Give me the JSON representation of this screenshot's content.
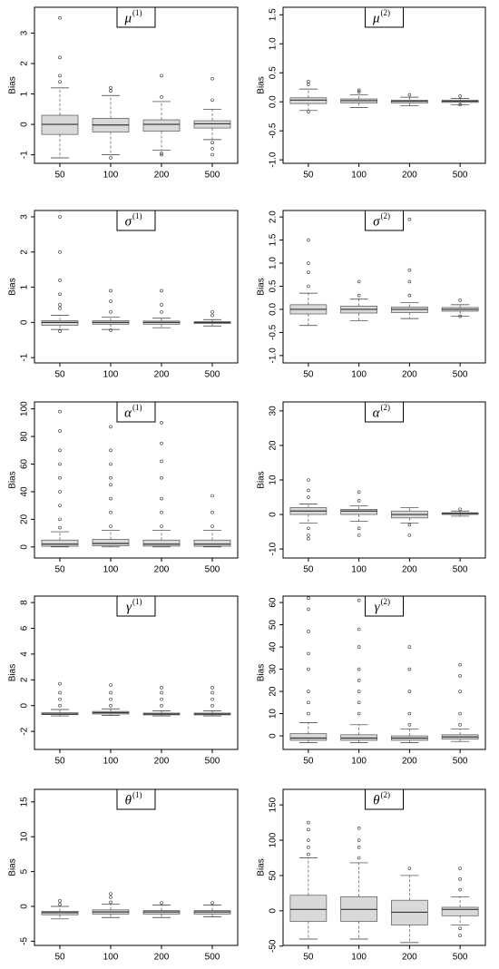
{
  "chart_data": [
    {
      "type": "box",
      "title": "μ",
      "title_sup": "(1)",
      "ylabel": "Bias",
      "categories": [
        "50",
        "100",
        "200",
        "500"
      ],
      "ylim": [
        -1.28,
        3.85
      ],
      "yticks": [
        -1,
        0,
        1,
        2,
        3
      ],
      "boxes": [
        {
          "whisker_low": -1.1,
          "q1": -0.33,
          "median": 0,
          "q3": 0.3,
          "whisker_high": 1.2,
          "outliers": [
            1.4,
            1.6,
            2.2,
            3.5
          ]
        },
        {
          "whisker_low": -1.0,
          "q1": -0.25,
          "median": -0.02,
          "q3": 0.2,
          "whisker_high": 0.95,
          "outliers": [
            1.1,
            1.2,
            -1.1
          ]
        },
        {
          "whisker_low": -0.85,
          "q1": -0.22,
          "median": 0,
          "q3": 0.15,
          "whisker_high": 0.75,
          "outliers": [
            0.9,
            1.6,
            -0.95,
            -1.0
          ]
        },
        {
          "whisker_low": -0.5,
          "q1": -0.12,
          "median": 0.02,
          "q3": 0.12,
          "whisker_high": 0.5,
          "outliers": [
            0.8,
            1.5,
            -0.6,
            -0.8,
            -1.0
          ]
        }
      ]
    },
    {
      "type": "box",
      "title": "μ",
      "title_sup": "(2)",
      "ylabel": "Bias",
      "categories": [
        "50",
        "100",
        "200",
        "500"
      ],
      "ylim": [
        -1.06,
        1.63
      ],
      "yticks": [
        {
          "value": -1,
          "label": "-1.0"
        },
        {
          "value": -0.5,
          "label": "-0.5"
        },
        {
          "value": 0,
          "label": "0.0"
        },
        {
          "value": 0.5,
          "label": "0.5"
        },
        {
          "value": 1,
          "label": "1.0"
        },
        {
          "value": 1.5,
          "label": "1.5"
        }
      ],
      "boxes": [
        {
          "whisker_low": -0.15,
          "q1": -0.03,
          "median": 0.03,
          "q3": 0.07,
          "whisker_high": 0.22,
          "outliers": [
            0.3,
            0.35,
            -0.17
          ]
        },
        {
          "whisker_low": -0.1,
          "q1": -0.02,
          "median": 0.02,
          "q3": 0.05,
          "whisker_high": 0.12,
          "outliers": [
            0.17,
            0.2
          ]
        },
        {
          "whisker_low": -0.07,
          "q1": -0.02,
          "median": 0.01,
          "q3": 0.03,
          "whisker_high": 0.08,
          "outliers": [
            0.12
          ]
        },
        {
          "whisker_low": -0.05,
          "q1": -0.01,
          "median": 0.01,
          "q3": 0.03,
          "whisker_high": 0.06,
          "outliers": [
            0.1,
            -0.05
          ]
        }
      ]
    },
    {
      "type": "box",
      "title": "σ",
      "title_sup": "(1)",
      "ylabel": "Bias",
      "categories": [
        "50",
        "100",
        "200",
        "500"
      ],
      "ylim": [
        -1.15,
        3.18
      ],
      "yticks": [
        -1,
        0,
        1,
        2,
        3
      ],
      "boxes": [
        {
          "whisker_low": -0.2,
          "q1": -0.08,
          "median": 0,
          "q3": 0.05,
          "whisker_high": 0.2,
          "outliers": [
            0.4,
            0.5,
            0.8,
            1.2,
            2.0,
            3.0,
            -0.25
          ]
        },
        {
          "whisker_low": -0.2,
          "q1": -0.05,
          "median": 0,
          "q3": 0.05,
          "whisker_high": 0.15,
          "outliers": [
            0.3,
            0.6,
            0.9,
            -0.22
          ]
        },
        {
          "whisker_low": -0.15,
          "q1": -0.05,
          "median": 0,
          "q3": 0.04,
          "whisker_high": 0.12,
          "outliers": [
            0.3,
            0.5,
            0.9
          ]
        },
        {
          "whisker_low": -0.1,
          "q1": -0.03,
          "median": 0,
          "q3": 0.02,
          "whisker_high": 0.08,
          "outliers": [
            0.2,
            0.3
          ]
        }
      ]
    },
    {
      "type": "box",
      "title": "σ",
      "title_sup": "(2)",
      "ylabel": "Bias",
      "categories": [
        "50",
        "100",
        "200",
        "500"
      ],
      "ylim": [
        -1.16,
        2.14
      ],
      "yticks": [
        {
          "value": -1,
          "label": "-1.0"
        },
        {
          "value": -0.5,
          "label": "-0.5"
        },
        {
          "value": 0,
          "label": "0.0"
        },
        {
          "value": 0.5,
          "label": "0.5"
        },
        {
          "value": 1,
          "label": "1.0"
        },
        {
          "value": 1.5,
          "label": "1.5"
        },
        {
          "value": 2,
          "label": "2.0"
        }
      ],
      "boxes": [
        {
          "whisker_low": -0.35,
          "q1": -0.1,
          "median": 0,
          "q3": 0.1,
          "whisker_high": 0.35,
          "outliers": [
            0.5,
            0.8,
            1.0,
            1.5
          ]
        },
        {
          "whisker_low": -0.25,
          "q1": -0.08,
          "median": 0,
          "q3": 0.07,
          "whisker_high": 0.22,
          "outliers": [
            0.3,
            0.6
          ]
        },
        {
          "whisker_low": -0.2,
          "q1": -0.07,
          "median": 0,
          "q3": 0.05,
          "whisker_high": 0.15,
          "outliers": [
            0.3,
            0.6,
            0.85,
            1.95
          ]
        },
        {
          "whisker_low": -0.15,
          "q1": -0.04,
          "median": 0,
          "q3": 0.04,
          "whisker_high": 0.1,
          "outliers": [
            0.2,
            -0.15
          ]
        }
      ]
    },
    {
      "type": "box",
      "title": "α",
      "title_sup": "(1)",
      "ylabel": "Bias",
      "categories": [
        "50",
        "100",
        "200",
        "500"
      ],
      "ylim": [
        -8,
        105
      ],
      "yticks": [
        0,
        20,
        40,
        60,
        80,
        100
      ],
      "boxes": [
        {
          "whisker_low": 0,
          "q1": 0.5,
          "median": 2,
          "q3": 5,
          "whisker_high": 11,
          "outliers": [
            14,
            20,
            30,
            40,
            50,
            60,
            70,
            84,
            98
          ]
        },
        {
          "whisker_low": 0,
          "q1": 0.8,
          "median": 2.5,
          "q3": 5.5,
          "whisker_high": 12,
          "outliers": [
            15,
            25,
            35,
            45,
            50,
            60,
            70,
            87
          ]
        },
        {
          "whisker_low": 0,
          "q1": 0.6,
          "median": 2,
          "q3": 5,
          "whisker_high": 12,
          "outliers": [
            15,
            25,
            35,
            50,
            62,
            75,
            90
          ]
        },
        {
          "whisker_low": 0,
          "q1": 0.5,
          "median": 2,
          "q3": 5,
          "whisker_high": 12,
          "outliers": [
            15,
            25,
            37
          ]
        }
      ]
    },
    {
      "type": "box",
      "title": "α",
      "title_sup": "(2)",
      "ylabel": "Bias",
      "categories": [
        "50",
        "100",
        "200",
        "500"
      ],
      "ylim": [
        -12.6,
        32.6
      ],
      "yticks": [
        -10,
        0,
        10,
        20,
        30
      ],
      "boxes": [
        {
          "whisker_low": -2.5,
          "q1": 0,
          "median": 1,
          "q3": 2,
          "whisker_high": 3,
          "outliers": [
            5,
            7,
            10,
            -4,
            -6,
            -7
          ]
        },
        {
          "whisker_low": -2,
          "q1": 0,
          "median": 1,
          "q3": 1.5,
          "whisker_high": 2.5,
          "outliers": [
            4,
            6.5,
            -4,
            -6
          ]
        },
        {
          "whisker_low": -2.5,
          "q1": -1,
          "median": 0,
          "q3": 1,
          "whisker_high": 2,
          "outliers": [
            -3,
            -6
          ]
        },
        {
          "whisker_low": -0.5,
          "q1": 0,
          "median": 0.3,
          "q3": 0.5,
          "whisker_high": 1,
          "outliers": [
            1.5
          ]
        }
      ]
    },
    {
      "type": "box",
      "title": "γ",
      "title_sup": "(1)",
      "ylabel": "Bias",
      "categories": [
        "50",
        "100",
        "200",
        "500"
      ],
      "ylim": [
        -3.4,
        8.5
      ],
      "yticks": [
        -2,
        0,
        2,
        4,
        6,
        8
      ],
      "boxes": [
        {
          "whisker_low": -0.8,
          "q1": -0.7,
          "median": -0.65,
          "q3": -0.55,
          "whisker_high": -0.3,
          "outliers": [
            0,
            0.5,
            1,
            1.7
          ]
        },
        {
          "whisker_low": -0.75,
          "q1": -0.65,
          "median": -0.55,
          "q3": -0.45,
          "whisker_high": -0.25,
          "outliers": [
            0,
            0.5,
            1,
            1.6
          ]
        },
        {
          "whisker_low": -0.8,
          "q1": -0.72,
          "median": -0.65,
          "q3": -0.58,
          "whisker_high": -0.4,
          "outliers": [
            0,
            0.5,
            1,
            1.4
          ]
        },
        {
          "whisker_low": -0.8,
          "q1": -0.72,
          "median": -0.65,
          "q3": -0.58,
          "whisker_high": -0.4,
          "outliers": [
            0,
            0.5,
            1,
            1.4
          ]
        }
      ]
    },
    {
      "type": "box",
      "title": "γ",
      "title_sup": "(2)",
      "ylabel": "Bias",
      "categories": [
        "50",
        "100",
        "200",
        "500"
      ],
      "ylim": [
        -6.1,
        62.9
      ],
      "yticks": [
        0,
        10,
        20,
        30,
        40,
        50,
        60
      ],
      "boxes": [
        {
          "whisker_low": -3,
          "q1": -2,
          "median": -1,
          "q3": 1,
          "whisker_high": 6,
          "outliers": [
            10,
            15,
            20,
            30,
            37,
            47,
            57,
            62
          ]
        },
        {
          "whisker_low": -3,
          "q1": -2,
          "median": -1,
          "q3": 0.5,
          "whisker_high": 5,
          "outliers": [
            10,
            15,
            20,
            25,
            30,
            40,
            48,
            61
          ]
        },
        {
          "whisker_low": -3,
          "q1": -2,
          "median": -1,
          "q3": 0,
          "whisker_high": 3,
          "outliers": [
            5,
            10,
            20,
            30,
            40
          ]
        },
        {
          "whisker_low": -2.5,
          "q1": -1.5,
          "median": -0.5,
          "q3": 0.5,
          "whisker_high": 3,
          "outliers": [
            5,
            10,
            20,
            27,
            32
          ]
        }
      ]
    },
    {
      "type": "box",
      "title": "θ",
      "title_sup": "(1)",
      "ylabel": "Bias",
      "categories": [
        "50",
        "100",
        "200",
        "500"
      ],
      "ylim": [
        -5.6,
        16.8
      ],
      "yticks": [
        -5,
        0,
        5,
        10,
        15
      ],
      "boxes": [
        {
          "whisker_low": -1.8,
          "q1": -1.2,
          "median": -0.9,
          "q3": -0.7,
          "whisker_high": 0,
          "outliers": [
            0.3,
            0.8
          ]
        },
        {
          "whisker_low": -1.6,
          "q1": -1.1,
          "median": -0.8,
          "q3": -0.5,
          "whisker_high": 0.3,
          "outliers": [
            0.6,
            1.3,
            1.8
          ]
        },
        {
          "whisker_low": -1.6,
          "q1": -1.1,
          "median": -0.8,
          "q3": -0.6,
          "whisker_high": 0.2,
          "outliers": [
            0.5
          ]
        },
        {
          "whisker_low": -1.5,
          "q1": -1.1,
          "median": -0.8,
          "q3": -0.6,
          "whisker_high": 0.2,
          "outliers": [
            0.5
          ]
        }
      ]
    },
    {
      "type": "box",
      "title": "θ",
      "title_sup": "(2)",
      "ylabel": "Bias",
      "categories": [
        "50",
        "100",
        "200",
        "500"
      ],
      "ylim": [
        -49,
        172
      ],
      "yticks": [
        -50,
        0,
        50,
        100,
        150
      ],
      "boxes": [
        {
          "whisker_low": -40,
          "q1": -15,
          "median": 2,
          "q3": 22,
          "whisker_high": 75,
          "outliers": [
            80,
            90,
            100,
            115,
            125
          ]
        },
        {
          "whisker_low": -40,
          "q1": -15,
          "median": 2,
          "q3": 20,
          "whisker_high": 68,
          "outliers": [
            75,
            90,
            100,
            117
          ]
        },
        {
          "whisker_low": -45,
          "q1": -20,
          "median": -2,
          "q3": 15,
          "whisker_high": 50,
          "outliers": [
            60
          ]
        },
        {
          "whisker_low": -20,
          "q1": -7,
          "median": 2,
          "q3": 5,
          "whisker_high": 20,
          "outliers": [
            30,
            45,
            60,
            -25,
            -35
          ]
        }
      ]
    }
  ]
}
